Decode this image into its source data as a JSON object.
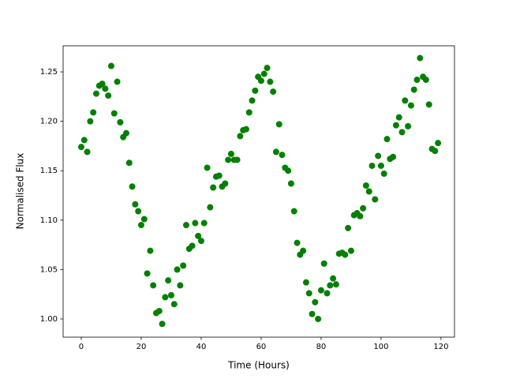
{
  "chart_data": {
    "type": "scatter",
    "x_label": "Time (Hours)",
    "y_label": "Normalised Flux",
    "color": "#008000",
    "x": [
      0,
      1,
      2,
      3,
      4,
      5,
      6,
      7,
      8,
      9,
      10,
      11,
      12,
      13,
      14,
      15,
      16,
      17,
      18,
      19,
      20,
      21,
      22,
      23,
      24,
      25,
      26,
      27,
      28,
      29,
      30,
      31,
      32,
      33,
      34,
      35,
      36,
      37,
      38,
      39,
      40,
      41,
      42,
      43,
      44,
      45,
      46,
      47,
      48,
      49,
      50,
      51,
      52,
      53,
      54,
      55,
      56,
      57,
      58,
      59,
      60,
      61,
      62,
      63,
      64,
      65,
      66,
      67,
      68,
      69,
      70,
      71,
      72,
      73,
      74,
      75,
      76,
      77,
      78,
      79,
      80,
      81,
      82,
      83,
      84,
      85,
      86,
      87,
      88,
      89,
      90,
      91,
      92,
      93,
      94,
      95,
      96,
      97,
      98,
      99,
      100,
      101,
      102,
      103,
      104,
      105,
      106,
      107,
      108,
      109,
      110,
      111,
      112,
      113,
      114,
      115,
      116,
      117,
      118,
      119
    ],
    "values": [
      1.174,
      1.181,
      1.169,
      1.2,
      1.209,
      1.228,
      1.236,
      1.238,
      1.233,
      1.226,
      1.256,
      1.208,
      1.24,
      1.199,
      1.184,
      1.188,
      1.158,
      1.134,
      1.116,
      1.109,
      1.095,
      1.101,
      1.046,
      1.069,
      1.034,
      1.006,
      1.008,
      0.995,
      1.022,
      1.039,
      1.024,
      1.015,
      1.05,
      1.034,
      1.054,
      1.095,
      1.071,
      1.074,
      1.097,
      1.084,
      1.079,
      1.097,
      1.153,
      1.113,
      1.133,
      1.144,
      1.145,
      1.134,
      1.137,
      1.161,
      1.167,
      1.161,
      1.161,
      1.185,
      1.191,
      1.192,
      1.209,
      1.221,
      1.231,
      1.245,
      1.241,
      1.248,
      1.254,
      1.24,
      1.23,
      1.169,
      1.197,
      1.166,
      1.153,
      1.15,
      1.137,
      1.109,
      1.077,
      1.065,
      1.069,
      1.037,
      1.026,
      1.005,
      1.017,
      1.0,
      1.029,
      1.056,
      1.026,
      1.034,
      1.041,
      1.035,
      1.066,
      1.067,
      1.065,
      1.092,
      1.069,
      1.105,
      1.107,
      1.104,
      1.112,
      1.135,
      1.129,
      1.155,
      1.121,
      1.165,
      1.155,
      1.147,
      1.182,
      1.162,
      1.164,
      1.196,
      1.204,
      1.189,
      1.221,
      1.195,
      1.216,
      1.232,
      1.242,
      1.264,
      1.245,
      1.242,
      1.217,
      1.172,
      1.17,
      1.178
    ],
    "xlim": [
      -6.05,
      124.5
    ],
    "ylim": [
      0.9816,
      1.2764
    ],
    "xticks": [
      0,
      20,
      40,
      60,
      80,
      100,
      120
    ],
    "yticks": [
      {
        "value": 1.0,
        "label": "1.00"
      },
      {
        "value": 1.05,
        "label": "1.05"
      },
      {
        "value": 1.1,
        "label": "1.10"
      },
      {
        "value": 1.15,
        "label": "1.15"
      },
      {
        "value": 1.2,
        "label": "1.20"
      },
      {
        "value": 1.25,
        "label": "1.25"
      }
    ],
    "grid": false
  }
}
